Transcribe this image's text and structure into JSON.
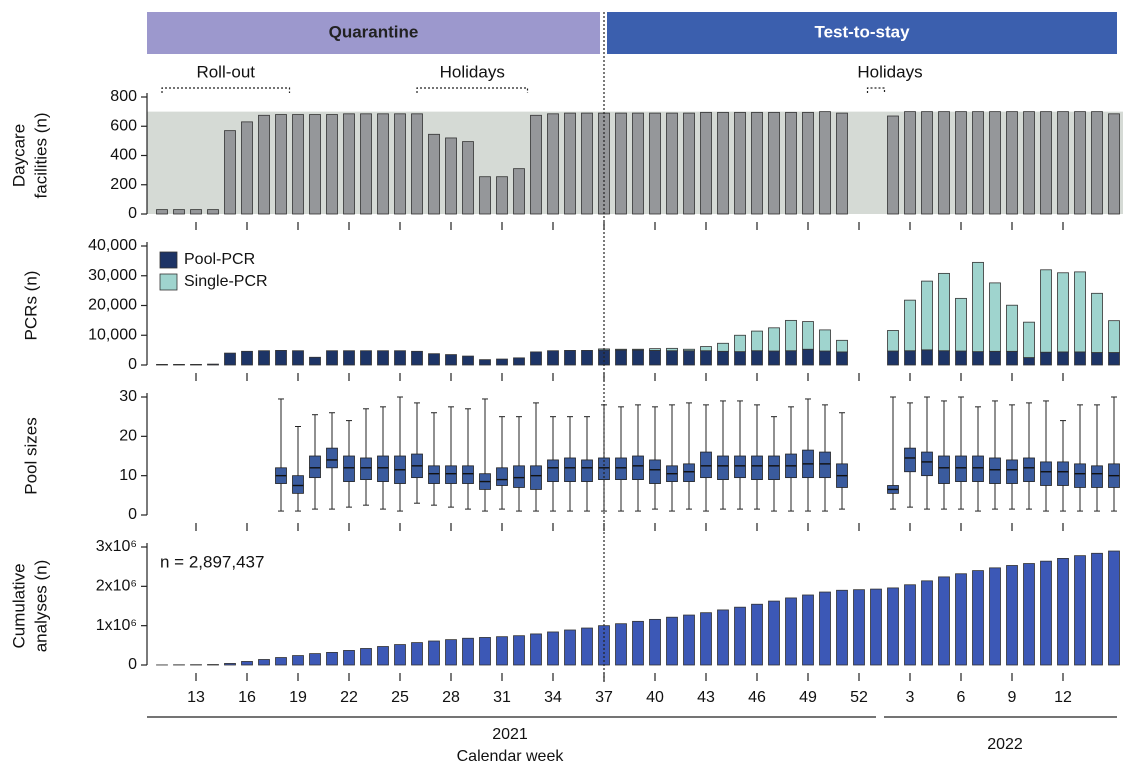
{
  "phases": [
    {
      "label": "Quarantine",
      "color": "#9c98cd"
    },
    {
      "label": "Test-to-stay",
      "color": "#3b5fae"
    }
  ],
  "chart_data": [
    {
      "type": "bar",
      "ylabel": [
        "Daycare",
        "facilities (n)"
      ],
      "color": "#95979a",
      "shade_color": "#d5dad5",
      "shaded_to": 700,
      "annotations": [
        "Roll-out",
        "Holidays",
        "Holidays"
      ],
      "ylim": [
        0,
        800
      ],
      "yticks": [
        0,
        200,
        400,
        600,
        800
      ],
      "values": [
        30,
        30,
        30,
        30,
        570,
        630,
        675,
        680,
        680,
        680,
        680,
        685,
        685,
        685,
        685,
        685,
        545,
        520,
        495,
        255,
        255,
        310,
        675,
        685,
        690,
        690,
        690,
        690,
        690,
        690,
        690,
        690,
        695,
        695,
        695,
        695,
        695,
        695,
        695,
        700,
        690,
        null,
        null,
        670,
        700,
        700,
        700,
        700,
        700,
        700,
        700,
        700,
        700,
        700,
        700,
        700,
        685
      ]
    },
    {
      "type": "stacked-bar",
      "ylabel": [
        "PCRs (n)"
      ],
      "ylim": [
        0,
        40000
      ],
      "yticks": [
        0,
        {
          "value": 10000,
          "label": "10,000"
        },
        {
          "value": 20000,
          "label": "20,000"
        },
        {
          "value": 30000,
          "label": "30,000"
        },
        {
          "value": 40000,
          "label": "40,000"
        }
      ],
      "series": [
        {
          "name": "Pool-PCR",
          "color": "#1d3466",
          "values": [
            200,
            200,
            200,
            300,
            4000,
            4600,
            4800,
            4900,
            4800,
            2600,
            4800,
            4800,
            4800,
            4800,
            4800,
            4600,
            3800,
            3500,
            3000,
            1800,
            2000,
            2400,
            4400,
            4800,
            4900,
            4900,
            5000,
            5000,
            5000,
            4900,
            4800,
            4800,
            4800,
            4600,
            4500,
            4800,
            4700,
            4800,
            5300,
            4700,
            4400,
            null,
            null,
            4700,
            4800,
            5100,
            4800,
            4700,
            4500,
            4600,
            4600,
            2500,
            4300,
            4400,
            4400,
            4200,
            4200
          ]
        },
        {
          "name": "Single-PCR",
          "color": "#9fd4ce",
          "values": [
            0,
            0,
            0,
            0,
            0,
            0,
            0,
            0,
            0,
            0,
            0,
            0,
            0,
            0,
            0,
            0,
            0,
            0,
            0,
            0,
            0,
            0,
            0,
            0,
            0,
            0,
            400,
            300,
            300,
            600,
            800,
            500,
            1400,
            2700,
            5500,
            6600,
            7800,
            10200,
            9300,
            7100,
            3900,
            null,
            null,
            6900,
            17000,
            23100,
            26000,
            17700,
            30000,
            23000,
            15500,
            11900,
            27700,
            26600,
            26900,
            19900,
            10700
          ]
        }
      ]
    },
    {
      "type": "box",
      "ylabel": [
        "Pool sizes"
      ],
      "color": "#3a5b9e",
      "ylim": [
        0,
        30
      ],
      "yticks": [
        0,
        10,
        20,
        30
      ],
      "whislo": [
        null,
        null,
        null,
        null,
        null,
        null,
        null,
        1,
        1,
        1.5,
        1.5,
        2,
        2.5,
        1.5,
        1,
        3,
        2.5,
        2,
        1.5,
        1,
        1.5,
        1,
        1,
        1,
        1,
        1,
        1,
        1,
        1,
        1.5,
        1,
        1.5,
        1,
        1.5,
        1.5,
        1.5,
        1,
        1,
        1,
        1,
        1.5,
        null,
        null,
        1.5,
        2,
        1.5,
        1.5,
        1.5,
        1,
        1.5,
        1.5,
        1.5,
        1,
        1,
        1,
        1,
        1
      ],
      "q1": [
        null,
        null,
        null,
        null,
        null,
        null,
        null,
        8,
        5.5,
        9.5,
        12,
        8.5,
        9,
        8.5,
        8,
        9.5,
        8,
        8,
        8,
        6.5,
        7.5,
        7,
        6.5,
        8.5,
        8.5,
        8.5,
        9,
        9,
        9,
        8,
        8.5,
        8.5,
        9.5,
        9,
        9.5,
        9,
        9,
        9.5,
        9.5,
        9.5,
        7,
        null,
        null,
        5.5,
        11,
        10,
        8,
        8.5,
        8.5,
        8,
        8,
        8.5,
        7.5,
        7.5,
        7,
        7,
        7
      ],
      "med": [
        null,
        null,
        null,
        null,
        null,
        null,
        null,
        10,
        7.5,
        12,
        14,
        12,
        12,
        12,
        11.5,
        12.5,
        10.5,
        10.5,
        10.5,
        8.5,
        9,
        9.5,
        10,
        12,
        12,
        12,
        12,
        12,
        12.5,
        11.5,
        10.5,
        11,
        12.5,
        12.5,
        12.5,
        12.5,
        12.5,
        12.5,
        13,
        13,
        10,
        null,
        null,
        6.5,
        14.5,
        13.5,
        12,
        12,
        12,
        11.5,
        11.5,
        12,
        11,
        11,
        10.5,
        10.5,
        10
      ],
      "q3": [
        null,
        null,
        null,
        null,
        null,
        null,
        null,
        12,
        10,
        15,
        17,
        15,
        14.5,
        15,
        15,
        15.5,
        12.5,
        12.5,
        12.5,
        10.5,
        12,
        12.5,
        12.5,
        14,
        14.5,
        14,
        14.5,
        14.5,
        15,
        14,
        12.5,
        13,
        16,
        15,
        15,
        15,
        15,
        15.5,
        16.5,
        16,
        13,
        null,
        null,
        7.5,
        17,
        16,
        15,
        15,
        15,
        14.5,
        14,
        14.5,
        13.5,
        13.5,
        13,
        12.5,
        13
      ],
      "whishi": [
        null,
        null,
        null,
        null,
        null,
        null,
        null,
        29.5,
        22.5,
        25.5,
        26,
        24,
        27,
        27.5,
        30,
        28.5,
        26,
        27.5,
        27,
        29.5,
        25,
        25,
        28.5,
        25,
        25,
        25,
        28,
        27.5,
        28,
        27.5,
        28,
        28.5,
        28,
        29,
        29,
        28,
        25,
        27.5,
        29.5,
        28,
        26,
        null,
        null,
        30,
        28.5,
        30,
        29,
        30,
        27.5,
        29,
        28,
        28.5,
        29,
        24,
        28,
        28,
        30
      ]
    },
    {
      "type": "bar",
      "ylabel": [
        "Cumulative",
        "analyses (n)"
      ],
      "color": "#3c58b6",
      "annotation": "n = 2,897,437",
      "ylim": [
        0,
        3000000
      ],
      "yticks": [
        0,
        {
          "value": 1000000,
          "label": "1x10⁶"
        },
        {
          "value": 2000000,
          "label": "2x10⁶"
        },
        {
          "value": 3000000,
          "label": "3x10⁶"
        }
      ],
      "categories": [
        null,
        null,
        "13",
        null,
        null,
        "16",
        null,
        null,
        "19",
        null,
        null,
        "22",
        null,
        null,
        "25",
        null,
        null,
        "28",
        null,
        null,
        "31",
        null,
        null,
        "34",
        null,
        null,
        "37",
        null,
        null,
        "40",
        null,
        null,
        "43",
        null,
        null,
        "46",
        null,
        null,
        "49",
        null,
        null,
        "52",
        null,
        null,
        "3",
        null,
        null,
        "6",
        null,
        null,
        "9",
        null,
        null,
        "12",
        null,
        null,
        null
      ],
      "x_groups": [
        "2021",
        "2022"
      ],
      "xlabel": "Calendar week",
      "values": [
        2000,
        5000,
        8000,
        12000,
        40000,
        90000,
        140000,
        190000,
        240000,
        290000,
        320000,
        370000,
        420000,
        470000,
        520000,
        570000,
        610000,
        645000,
        680000,
        700000,
        720000,
        745000,
        790000,
        840000,
        890000,
        940000,
        1000000,
        1050000,
        1110000,
        1160000,
        1215000,
        1270000,
        1330000,
        1400000,
        1470000,
        1545000,
        1625000,
        1705000,
        1780000,
        1855000,
        1900000,
        1915000,
        1930000,
        1960000,
        2040000,
        2140000,
        2240000,
        2320000,
        2400000,
        2470000,
        2530000,
        2580000,
        2640000,
        2710000,
        2780000,
        2840000,
        2897437
      ]
    }
  ]
}
